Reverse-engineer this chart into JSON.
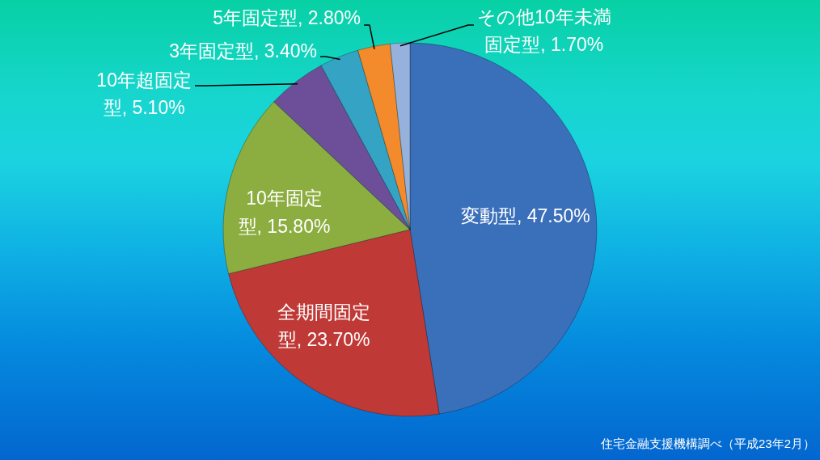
{
  "chart_data": {
    "type": "pie",
    "categories": [
      "変動型",
      "全期間固定型",
      "10年固定型",
      "10年超固定型",
      "3年固定型",
      "5年固定型",
      "その他10年未満固定型"
    ],
    "values": [
      47.5,
      23.7,
      15.8,
      5.1,
      3.4,
      2.8,
      1.7
    ],
    "colors": [
      "#3a6fba",
      "#bf3a37",
      "#8cad3f",
      "#6d4f99",
      "#35a3c3",
      "#f38a2c",
      "#95b1dc"
    ],
    "value_labels": [
      "47.50%",
      "23.70%",
      "15.80%",
      "5.10%",
      "3.40%",
      "2.80%",
      "1.70%"
    ],
    "annotations": [
      "住宅金融支援機構調べ（平成23年2月）"
    ]
  }
}
